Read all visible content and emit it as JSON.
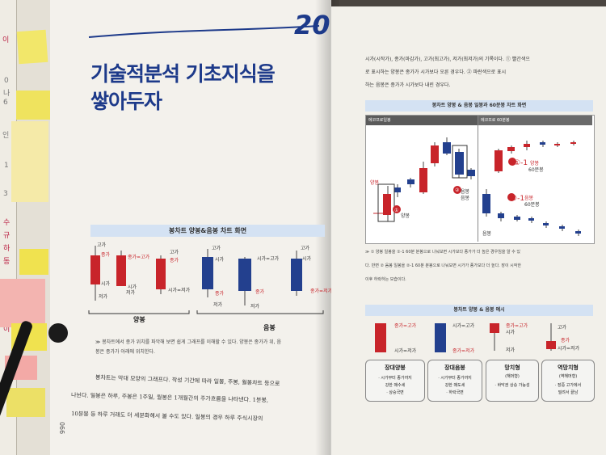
{
  "left_page": {
    "chapter_number": "20",
    "title_line1": "기술적분석 기초지식을",
    "title_line2": "쌓아두자",
    "section_band": "봉차트 양봉&음봉 차트 화면",
    "labels": {
      "high": "고가",
      "close": "종가",
      "open": "시가",
      "low": "저가",
      "close_eq_high": "종가=고가",
      "open_eq_low": "시가=저가",
      "open_eq_high": "시가=고가",
      "close_eq_low": "종가=저가"
    },
    "yang_label": "양봉",
    "eum_label": "음봉",
    "note": "≫ 봉차트에서 종가 위치를 파악해 보면 쉽게 그래프를 이해할 수 있다. 양봉은 종가가 위, 음",
    "note2": "봉은 종가가 아래에 위치한다.",
    "body1": "봉차트는 막대 모양의 그래프다. 작성 기간에 따라 일봉, 주봉, 월봉차트 등으로",
    "body2": "나뉜다. 일봉은 하루, 주봉은 1주일, 월봉은 1개월간의 주가흐름을 나타낸다. 1분봉,",
    "body3": "10분봉 등 하루 거래도 더 세분화해서 볼 수도 있다. 일봉의 경우 하루 주식시장의",
    "page_number": "990"
  },
  "right_page": {
    "intro1": "시가(시작가), 종가(마감가), 고가(최고가), 저가(최저가)의 기록이다. ① 빨간색으",
    "intro2": "로 표시하는 양봉은 종가가 시가보다 오른 경우다. ② 파란색으로 표시",
    "intro3": "하는 음봉은 종가가 시가보다 내린 경우다.",
    "chart_band": "봉차트 양봉 & 음봉 일봉과 60분봉 차트 화면",
    "panel_left_label": "에코프로일봉",
    "panel_right_label": "에코프로 60분봉",
    "chart_tags": {
      "yang": "양봉",
      "eum": "음봉",
      "c1": "①",
      "c2": "②",
      "c1_1": "①-1",
      "c2_1": "②-1",
      "bong60": "60분봉"
    },
    "explain1": "≫ ① 양봉 일봉을 ①-1 60분 분봉으로 나눠보면 시가보다 종가가 더 높은 경우임을 알 수 있",
    "explain2": "다. 반면 ② 음봉 일봉을 ②-1 60분 분봉으로 나눠보면 시가가 종가보다 더 높다. 장이 시작한",
    "explain3": "이후 하락하는 모습이다.",
    "example_band": "봉차트 양봉 & 음봉 예시",
    "examples": [
      {
        "top": "종가=고가",
        "bottom": "시가=저가",
        "title": "장대양봉",
        "desc1": "· 시가부터 종가까지",
        "desc2": "강한 매수세",
        "desc3": "· 상승국면"
      },
      {
        "top": "시가=고가",
        "bottom": "종가=저가",
        "title": "장대음봉",
        "desc1": "· 시가부터 종가까지",
        "desc2": "강한 매도세",
        "desc3": "· 하락국면"
      },
      {
        "top": "종가=고가",
        "bottom": "시가",
        "extra": "저가",
        "title": "망치형",
        "sub": "(해머형)",
        "desc1": "· 바닥권 상승 가능성",
        "desc2": "",
        "desc3": ""
      },
      {
        "top": "고가",
        "bottom": "시가=저가",
        "extra": "종가",
        "title": "역망치형",
        "sub": "(역해머형)",
        "desc1": "· 장중 고가에서",
        "desc2": "밀려서 끝남",
        "desc3": ""
      }
    ]
  },
  "left_strip": {
    "texts": [
      "이",
      "0",
      "나",
      "6",
      "인",
      "1",
      "3",
      "수",
      "규",
      "하",
      "동",
      "미",
      "이"
    ]
  },
  "colors": {
    "red": "#c8242a",
    "blue": "#23408e",
    "band": "#d4e2f3",
    "navy": "#1d3a8a"
  }
}
